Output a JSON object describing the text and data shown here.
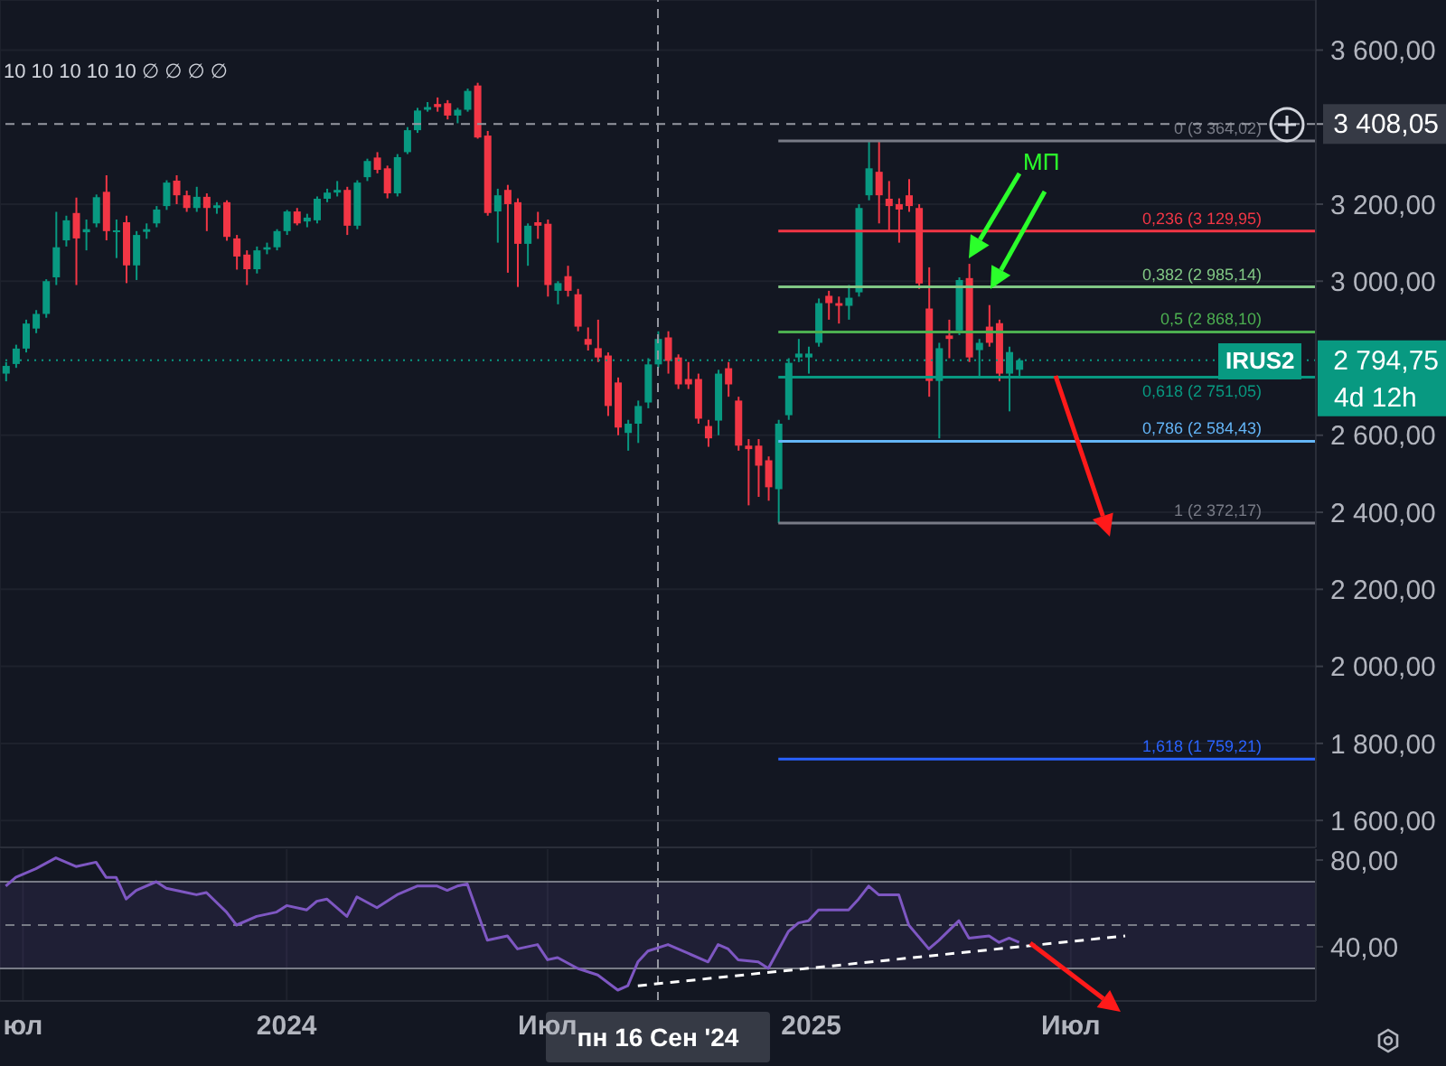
{
  "chart_data": [
    {
      "type": "candlestick",
      "x": [
        "2023-06-19",
        "2023-06-26",
        "2023-07-03",
        "2023-07-10",
        "2023-07-17",
        "2023-07-24",
        "2023-07-31",
        "2023-08-07",
        "2023-08-14",
        "2023-08-21",
        "2023-08-28",
        "2023-09-04",
        "2023-09-11",
        "2023-09-18",
        "2023-09-25",
        "2023-10-02",
        "2023-10-09",
        "2023-10-16",
        "2023-10-23",
        "2023-10-30",
        "2023-11-06",
        "2023-11-13",
        "2023-11-20",
        "2023-11-27",
        "2023-12-04",
        "2023-12-11",
        "2023-12-18",
        "2023-12-25",
        "2024-01-01",
        "2024-01-08",
        "2024-01-15",
        "2024-01-22",
        "2024-01-29",
        "2024-02-05",
        "2024-02-12",
        "2024-02-19",
        "2024-02-26",
        "2024-03-04",
        "2024-03-11",
        "2024-03-18",
        "2024-03-25",
        "2024-04-01",
        "2024-04-08",
        "2024-04-15",
        "2024-04-22",
        "2024-04-29",
        "2024-05-06",
        "2024-05-13",
        "2024-05-20",
        "2024-05-27",
        "2024-06-03",
        "2024-06-10",
        "2024-06-17",
        "2024-06-24",
        "2024-07-01",
        "2024-07-08",
        "2024-07-15",
        "2024-07-22",
        "2024-07-29",
        "2024-08-05",
        "2024-08-12",
        "2024-08-19",
        "2024-08-26",
        "2024-09-02",
        "2024-09-09",
        "2024-09-16",
        "2024-09-23",
        "2024-09-30",
        "2024-10-07",
        "2024-10-14",
        "2024-10-21",
        "2024-10-28",
        "2024-11-04",
        "2024-11-11",
        "2024-11-18",
        "2024-11-25",
        "2024-12-02",
        "2024-12-09",
        "2024-12-16",
        "2024-12-23",
        "2024-12-30",
        "2025-01-06",
        "2025-01-13",
        "2025-01-20",
        "2025-01-27",
        "2025-02-03",
        "2025-02-10",
        "2025-02-17",
        "2025-02-24",
        "2025-03-03",
        "2025-03-10",
        "2025-03-17",
        "2025-03-24",
        "2025-03-31",
        "2025-04-07",
        "2025-04-14",
        "2025-04-21",
        "2025-04-28",
        "2025-05-05",
        "2025-05-12",
        "2025-05-19",
        "2025-05-26"
      ],
      "ohlc": [
        [
          2760,
          2790,
          2740,
          2780
        ],
        [
          2785,
          2835,
          2775,
          2825
        ],
        [
          2825,
          2900,
          2815,
          2890
        ],
        [
          2877,
          2925,
          2865,
          2915
        ],
        [
          2915,
          3005,
          2905,
          3000
        ],
        [
          3010,
          3180,
          2990,
          3088
        ],
        [
          3106,
          3170,
          3090,
          3158
        ],
        [
          3177,
          3217,
          2990,
          3111
        ],
        [
          3127,
          3160,
          3080,
          3135
        ],
        [
          3150,
          3225,
          3140,
          3218
        ],
        [
          3232,
          3275,
          3106,
          3130
        ],
        [
          3130,
          3160,
          3060,
          3132
        ],
        [
          3153,
          3170,
          2995,
          3041
        ],
        [
          3041,
          3130,
          3003,
          3120
        ],
        [
          3128,
          3150,
          3110,
          3135
        ],
        [
          3150,
          3195,
          3140,
          3186
        ],
        [
          3195,
          3262,
          3185,
          3256
        ],
        [
          3261,
          3275,
          3200,
          3223
        ],
        [
          3223,
          3235,
          3180,
          3190
        ],
        [
          3190,
          3245,
          3180,
          3219
        ],
        [
          3219,
          3228,
          3130,
          3190
        ],
        [
          3190,
          3205,
          3175,
          3197
        ],
        [
          3205,
          3210,
          3105,
          3115
        ],
        [
          3111,
          3120,
          3030,
          3064
        ],
        [
          3069,
          3080,
          2990,
          3031
        ],
        [
          3031,
          3090,
          3020,
          3080
        ],
        [
          3082,
          3100,
          3070,
          3088
        ],
        [
          3088,
          3135,
          3080,
          3130
        ],
        [
          3130,
          3185,
          3120,
          3181
        ],
        [
          3181,
          3190,
          3145,
          3150
        ],
        [
          3155,
          3175,
          3140,
          3165
        ],
        [
          3158,
          3220,
          3150,
          3214
        ],
        [
          3214,
          3240,
          3205,
          3230
        ],
        [
          3230,
          3260,
          3220,
          3237
        ],
        [
          3237,
          3245,
          3120,
          3144
        ],
        [
          3144,
          3262,
          3135,
          3256
        ],
        [
          3270,
          3318,
          3260,
          3312
        ],
        [
          3321,
          3335,
          3280,
          3289
        ],
        [
          3293,
          3300,
          3215,
          3228
        ],
        [
          3228,
          3330,
          3220,
          3322
        ],
        [
          3335,
          3400,
          3330,
          3392
        ],
        [
          3392,
          3450,
          3385,
          3443
        ],
        [
          3445,
          3465,
          3440,
          3452
        ],
        [
          3460,
          3477,
          3440,
          3452
        ],
        [
          3462,
          3470,
          3420,
          3430
        ],
        [
          3430,
          3450,
          3410,
          3445
        ],
        [
          3445,
          3500,
          3440,
          3494
        ],
        [
          3508,
          3515,
          3370,
          3373
        ],
        [
          3378,
          3390,
          3170,
          3177
        ],
        [
          3181,
          3240,
          3100,
          3223
        ],
        [
          3237,
          3250,
          3022,
          3200
        ],
        [
          3205,
          3215,
          2985,
          3097
        ],
        [
          3097,
          3150,
          3040,
          3144
        ],
        [
          3153,
          3180,
          3110,
          3144
        ],
        [
          3149,
          3160,
          2960,
          2990
        ],
        [
          2975,
          3000,
          2940,
          2995
        ],
        [
          3013,
          3040,
          2960,
          2975
        ],
        [
          2966,
          2980,
          2870,
          2882
        ],
        [
          2850,
          2880,
          2820,
          2835
        ],
        [
          2826,
          2900,
          2790,
          2802
        ],
        [
          2807,
          2815,
          2650,
          2676
        ],
        [
          2737,
          2750,
          2600,
          2620
        ],
        [
          2606,
          2640,
          2560,
          2630
        ],
        [
          2630,
          2690,
          2580,
          2676
        ],
        [
          2685,
          2800,
          2670,
          2784
        ],
        [
          2784,
          2870,
          2775,
          2850
        ],
        [
          2854,
          2870,
          2760,
          2793
        ],
        [
          2802,
          2810,
          2720,
          2732
        ],
        [
          2746,
          2790,
          2720,
          2732
        ],
        [
          2746,
          2760,
          2630,
          2643
        ],
        [
          2624,
          2640,
          2570,
          2592
        ],
        [
          2638,
          2770,
          2600,
          2760
        ],
        [
          2774,
          2790,
          2700,
          2732
        ],
        [
          2690,
          2700,
          2560,
          2573
        ],
        [
          2573,
          2590,
          2418,
          2564
        ],
        [
          2573,
          2590,
          2440,
          2521
        ],
        [
          2535,
          2545,
          2430,
          2465
        ],
        [
          2460,
          2640,
          2372,
          2630
        ],
        [
          2652,
          2800,
          2640,
          2788
        ],
        [
          2802,
          2850,
          2790,
          2812
        ],
        [
          2802,
          2830,
          2760,
          2812
        ],
        [
          2840,
          2955,
          2830,
          2943
        ],
        [
          2962,
          2975,
          2900,
          2943
        ],
        [
          2943,
          2960,
          2890,
          2936
        ],
        [
          2936,
          2990,
          2900,
          2957
        ],
        [
          2971,
          3200,
          2960,
          3190
        ],
        [
          3223,
          3364,
          3210,
          3293
        ],
        [
          3284,
          3364,
          3150,
          3223
        ],
        [
          3214,
          3260,
          3130,
          3195
        ],
        [
          3200,
          3215,
          3100,
          3186
        ],
        [
          3223,
          3265,
          3180,
          3195
        ],
        [
          3190,
          3200,
          2980,
          2994
        ],
        [
          2929,
          3036,
          2700,
          2741
        ],
        [
          2741,
          2840,
          2592,
          2826
        ],
        [
          2859,
          2900,
          2800,
          2850
        ],
        [
          2872,
          3010,
          2860,
          3003
        ],
        [
          3008,
          3045,
          2790,
          2802
        ],
        [
          2821,
          2850,
          2751,
          2840
        ],
        [
          2882,
          2938,
          2830,
          2840
        ],
        [
          2891,
          2900,
          2740,
          2760
        ],
        [
          2760,
          2830,
          2662,
          2816
        ],
        [
          2770,
          2800,
          2750,
          2794.75
        ]
      ],
      "xlim": [
        "2023-06-15",
        "2025-12-19"
      ],
      "ylim": [
        1530,
        3730
      ],
      "xticks": [
        "2023-07-01",
        "2024-01-01",
        "2024-07-01",
        "2025-01-01",
        "2025-07-01"
      ],
      "yticks": [
        {
          "value": 1600,
          "label": "1 600,00"
        },
        {
          "value": 1800,
          "label": "1 800,00"
        },
        {
          "value": 2000,
          "label": "2 000,00"
        },
        {
          "value": 2200,
          "label": "2 200,00"
        },
        {
          "value": 2400,
          "label": "2 400,00"
        },
        {
          "value": 2600,
          "label": "2 600,00"
        },
        {
          "value": 3000,
          "label": "3 000,00"
        },
        {
          "value": 3200,
          "label": "3 200,00"
        },
        {
          "value": 3600,
          "label": "3 600,00"
        }
      ],
      "tick_labels": "y",
      "grid": true,
      "ref_lines": [
        {
          "axis": "y",
          "value": 3364.02,
          "label": "0 (3 364,02)",
          "color": "#787b86",
          "line_style": "solid"
        },
        {
          "axis": "y",
          "value": 3129.95,
          "label": "0,236 (3 129,95)",
          "color": "#f23645",
          "line_style": "solid"
        },
        {
          "axis": "y",
          "value": 2985.14,
          "label": "0,382 (2 985,14)",
          "color": "#81c784",
          "line_style": "solid"
        },
        {
          "axis": "y",
          "value": 2868.1,
          "label": "0,5 (2 868,10)",
          "color": "#4caf50",
          "line_style": "solid"
        },
        {
          "axis": "y",
          "value": 2751.05,
          "label": "0,618 (2 751,05)",
          "color": "#089981",
          "line_style": "solid"
        },
        {
          "axis": "y",
          "value": 2584.43,
          "label": "0,786 (2 584,43)",
          "color": "#64b5f6",
          "line_style": "solid"
        },
        {
          "axis": "y",
          "value": 2372.17,
          "label": "1 (2 372,17)",
          "color": "#787b86",
          "line_style": "solid"
        },
        {
          "axis": "y",
          "value": 1759.21,
          "label": "1,618 (1 759,21)",
          "color": "#2962ff",
          "line_style": "solid"
        },
        {
          "axis": "y",
          "value": 3408.05,
          "label": "3 408,05",
          "color": "#9598a1",
          "line_style": "dashed"
        },
        {
          "axis": "y",
          "value": 2794.75,
          "label": "2 794,75",
          "color": "#089981",
          "line_style": "dotted"
        },
        {
          "axis": "x",
          "value": "2024-09-16",
          "color": "#9598a1",
          "line_style": "dashed"
        }
      ],
      "annotations": [
        "10 10 10 10 10 ∅ ∅ ∅ ∅",
        "МП",
        "IRUS2",
        "4d 12h"
      ]
    },
    {
      "type": "line",
      "series": [
        {
          "color": "#7e57c2",
          "x": [
            "2023-06-19",
            "2023-06-26",
            "2023-07-10",
            "2023-07-24",
            "2023-08-07",
            "2023-08-21",
            "2023-08-28",
            "2023-09-04",
            "2023-09-11",
            "2023-09-18",
            "2023-10-02",
            "2023-10-09",
            "2023-10-23",
            "2023-10-30",
            "2023-11-06",
            "2023-11-20",
            "2023-11-27",
            "2023-12-11",
            "2023-12-25",
            "2024-01-01",
            "2024-01-15",
            "2024-01-22",
            "2024-01-29",
            "2024-02-12",
            "2024-02-19",
            "2024-03-04",
            "2024-03-18",
            "2024-04-01",
            "2024-04-15",
            "2024-04-22",
            "2024-04-29",
            "2024-05-06",
            "2024-05-20",
            "2024-06-03",
            "2024-06-10",
            "2024-06-24",
            "2024-07-01",
            "2024-07-08",
            "2024-07-22",
            "2024-08-05",
            "2024-08-19",
            "2024-08-26",
            "2024-09-02",
            "2024-09-09",
            "2024-09-23",
            "2024-10-07",
            "2024-10-21",
            "2024-10-28",
            "2024-11-04",
            "2024-11-11",
            "2024-11-25",
            "2024-12-02",
            "2024-12-16",
            "2024-12-23",
            "2024-12-30",
            "2025-01-06",
            "2025-01-27",
            "2025-02-03",
            "2025-02-10",
            "2025-02-17",
            "2025-03-03",
            "2025-03-10",
            "2025-03-24",
            "2025-03-31",
            "2025-04-14",
            "2025-04-21",
            "2025-05-05",
            "2025-05-12",
            "2025-05-19",
            "2025-05-26"
          ],
          "values": [
            68,
            72,
            76,
            81,
            77,
            79,
            72,
            72,
            62,
            66,
            70,
            67,
            65,
            64,
            65,
            56,
            50,
            54,
            56,
            59,
            57,
            61,
            62,
            54,
            63,
            58,
            64,
            68,
            68,
            66,
            68,
            69,
            43,
            45,
            39,
            41,
            34,
            35,
            30,
            27,
            20,
            22,
            33,
            38,
            41,
            37,
            33,
            41,
            39,
            34,
            33,
            30,
            47,
            51,
            52,
            57,
            57,
            62,
            68,
            64,
            64,
            50,
            39,
            43,
            52,
            44,
            45,
            42,
            44,
            42
          ]
        },
        {
          "type": "line",
          "color": "#ffffff",
          "line_style": "dashed",
          "x": [
            "2024-09-02",
            "2025-08-08"
          ],
          "values": [
            22,
            45
          ]
        }
      ],
      "xlim": [
        "2023-06-15",
        "2025-12-19"
      ],
      "ylim": [
        15,
        85
      ],
      "xticks": [
        {
          "value": "2023-07-01",
          "label": "юл"
        },
        {
          "value": "2024-01-01",
          "label": "2024"
        },
        {
          "value": "2024-07-01",
          "label": "Июл"
        },
        {
          "value": "2025-01-01",
          "label": "2025"
        },
        {
          "value": "2025-07-01",
          "label": "Июл"
        }
      ],
      "yticks": [
        {
          "value": 40,
          "label": "40,00"
        },
        {
          "value": 80,
          "label": "80,00"
        }
      ],
      "grid": "x",
      "marker": "none",
      "bands": [
        {
          "axis": "y",
          "from": 30,
          "to": 70,
          "color": "#7e57c2"
        }
      ],
      "ref_lines": [
        {
          "axis": "y",
          "value": 70,
          "color": "#787b86",
          "line_style": "solid"
        },
        {
          "axis": "y",
          "value": 50,
          "color": "#787b86",
          "line_style": "dashed"
        },
        {
          "axis": "y",
          "value": 30,
          "color": "#787b86",
          "line_style": "solid"
        },
        {
          "axis": "x",
          "value": "2024-09-16",
          "label": "пн 16 Сен '24",
          "color": "#9598a1",
          "line_style": "dashed"
        }
      ]
    }
  ]
}
